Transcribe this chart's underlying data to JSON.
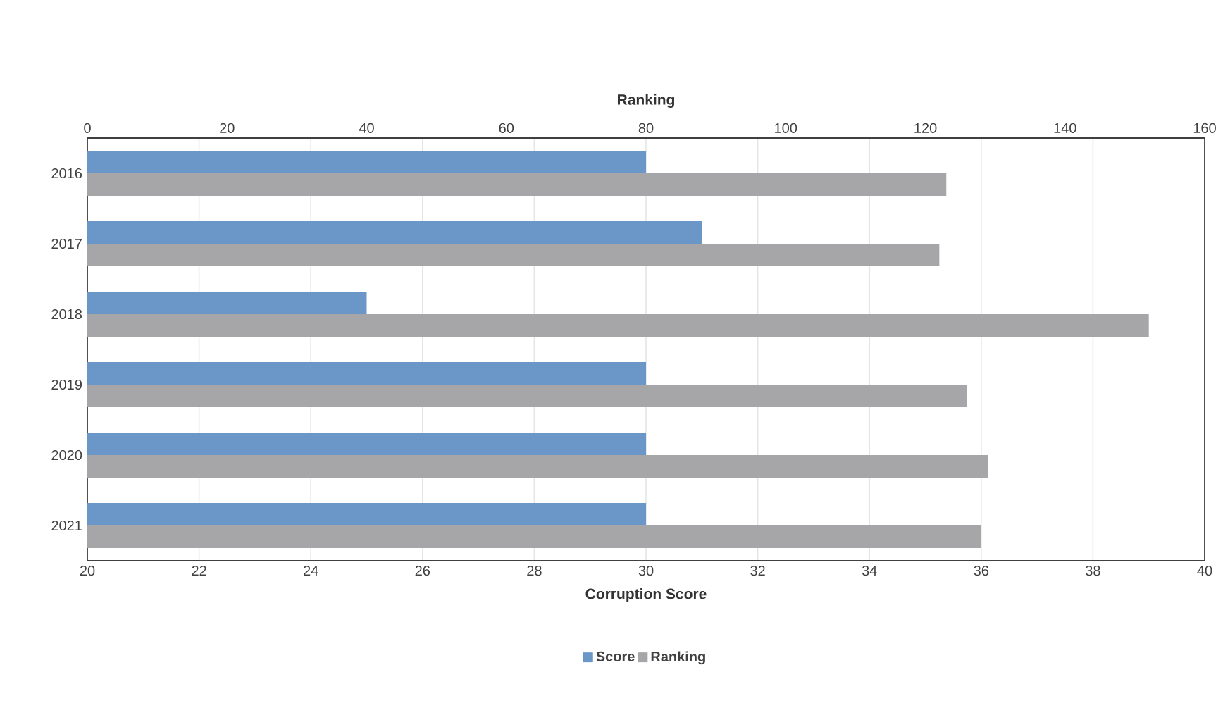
{
  "chart_data": {
    "type": "bar",
    "orientation": "horizontal",
    "xlabel": "Corruption Score",
    "x2label": "Ranking",
    "categories": [
      "2016",
      "2017",
      "2018",
      "2019",
      "2020",
      "2021"
    ],
    "series": [
      {
        "name": "Score",
        "color": "#6a96c8",
        "values": [
          30,
          31,
          25,
          30,
          30,
          30
        ]
      },
      {
        "name": "Ranking",
        "color": "#a6a6a8",
        "axis": "x2",
        "values": [
          123,
          122,
          152,
          126,
          129,
          128
        ]
      }
    ],
    "xlim": [
      20,
      40
    ],
    "xticks": [
      20,
      22,
      24,
      26,
      28,
      30,
      32,
      34,
      36,
      38,
      40
    ],
    "x2lim": [
      0,
      160
    ],
    "x2ticks": [
      0,
      20,
      40,
      60,
      80,
      100,
      120,
      140,
      160
    ],
    "grid": "x",
    "legend": "bottom"
  }
}
